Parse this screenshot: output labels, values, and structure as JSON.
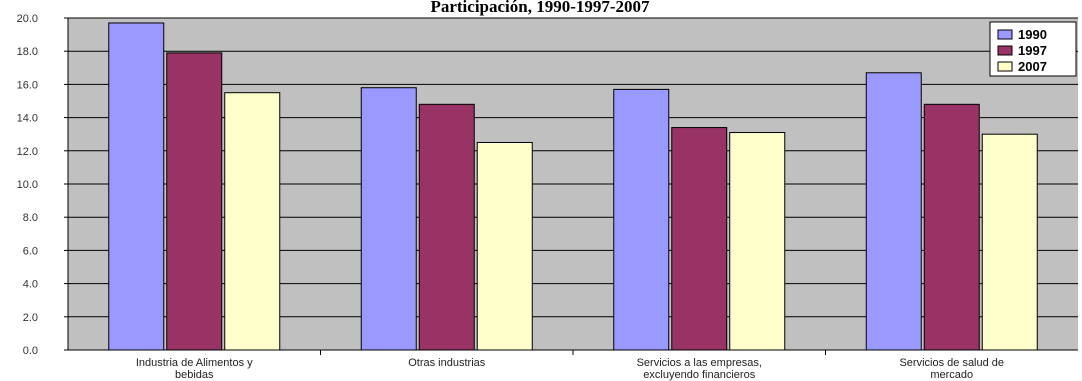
{
  "chart_data": {
    "type": "bar",
    "title": "Participación, 1990-1997-2007",
    "categories": [
      [
        "Industria de Alimentos y",
        "bebidas"
      ],
      [
        "Otras industrias"
      ],
      [
        "Servicios a las empresas,",
        "excluyendo financieros"
      ],
      [
        "Servicios de salud de",
        "mercado"
      ]
    ],
    "series": [
      {
        "name": "1990",
        "color": "#9999ff",
        "values": [
          19.7,
          15.8,
          15.7,
          16.7
        ]
      },
      {
        "name": "1997",
        "color": "#993366",
        "values": [
          17.9,
          14.8,
          13.4,
          14.8
        ]
      },
      {
        "name": "2007",
        "color": "#ffffcc",
        "values": [
          15.5,
          12.5,
          13.1,
          13.0
        ]
      }
    ],
    "ylim": [
      0,
      20
    ],
    "yticks": [
      "0.0",
      "2.0",
      "4.0",
      "6.0",
      "8.0",
      "10.0",
      "12.0",
      "14.0",
      "16.0",
      "18.0",
      "20.0"
    ],
    "grid": true,
    "plot_background": "#c0c0c0",
    "legend_position": "top-right"
  }
}
